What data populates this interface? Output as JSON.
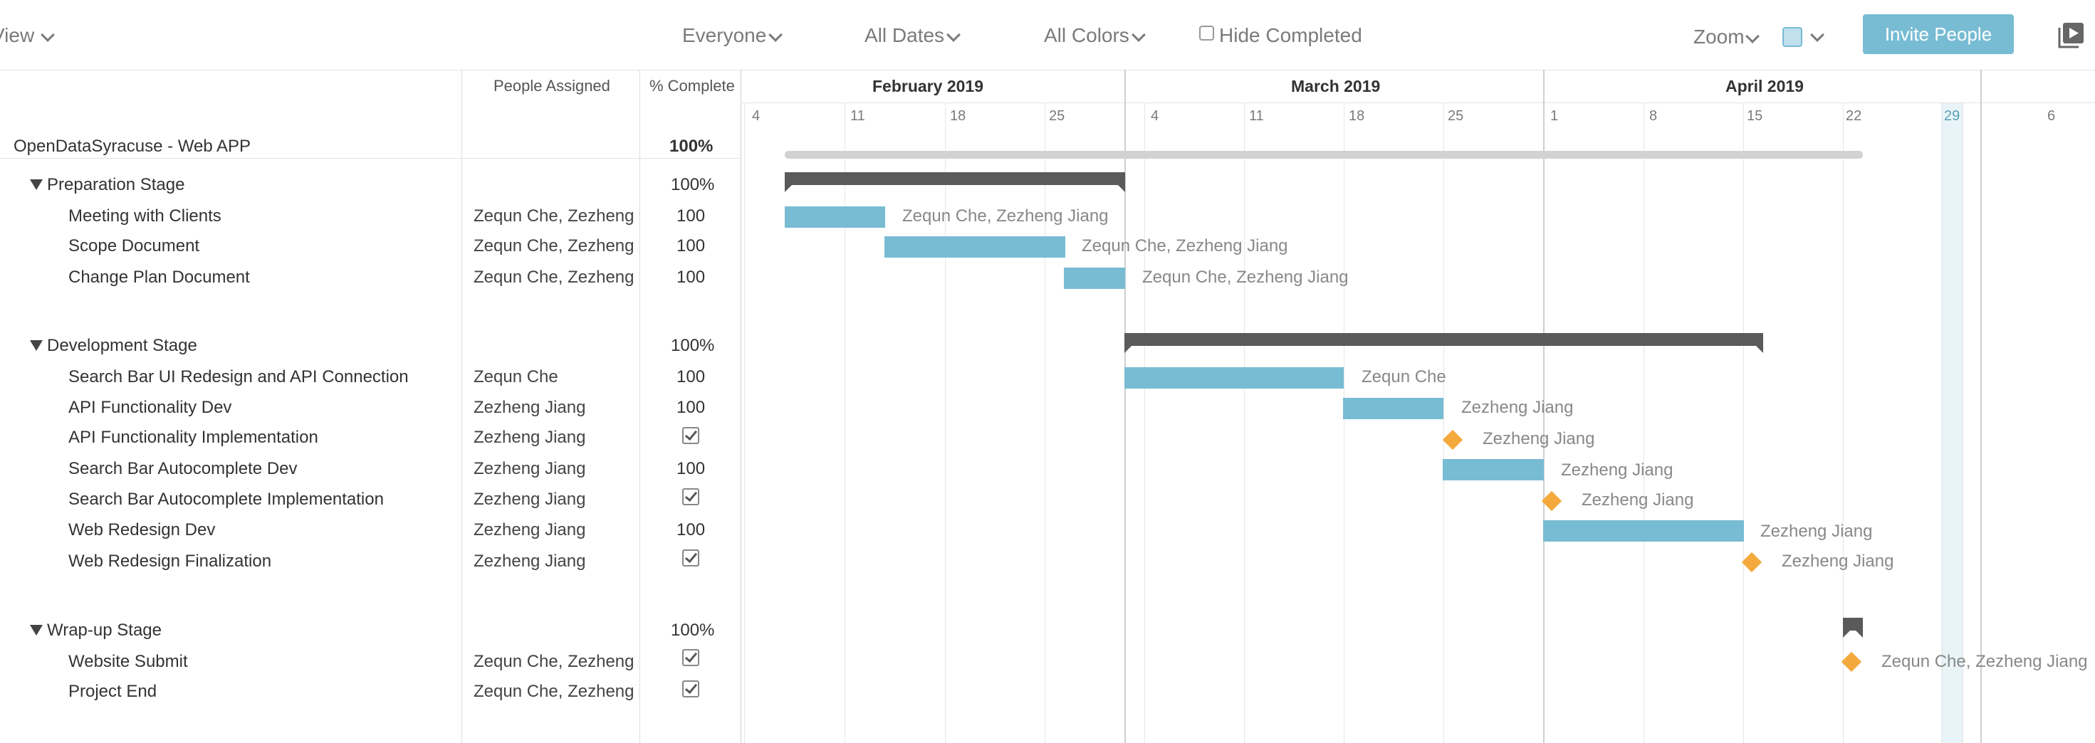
{
  "toolbar": {
    "view_label": "View",
    "everyone_label": "Everyone",
    "dates_label": "All Dates",
    "colors_label": "All Colors",
    "hide_completed_label": "Hide Completed",
    "zoom_label": "Zoom",
    "invite_label": "Invite People"
  },
  "columns": {
    "people": "People Assigned",
    "complete": "% Complete"
  },
  "timeline": {
    "months": [
      "February 2019",
      "March 2019",
      "April 2019"
    ],
    "days": [
      "4",
      "11",
      "18",
      "25",
      "4",
      "11",
      "18",
      "25",
      "1",
      "8",
      "15",
      "22",
      "29",
      "6"
    ]
  },
  "project": {
    "name": "OpenDataSyracuse - Web APP",
    "complete": "100%"
  },
  "stages": [
    {
      "name": "Preparation Stage",
      "complete": "100%",
      "tasks": [
        {
          "name": "Meeting with Clients",
          "people": "Zequn Che, Zezheng",
          "complete": "100",
          "label": "Zequn Che, Zezheng Jiang"
        },
        {
          "name": "Scope Document",
          "people": "Zequn Che, Zezheng",
          "complete": "100",
          "label": "Zequn Che, Zezheng Jiang"
        },
        {
          "name": "Change Plan Document",
          "people": "Zequn Che, Zezheng",
          "complete": "100",
          "label": "Zequn Che, Zezheng Jiang"
        }
      ]
    },
    {
      "name": "Development Stage",
      "complete": "100%",
      "tasks": [
        {
          "name": "Search Bar UI Redesign and  API Connection",
          "people": "Zequn Che",
          "complete": "100",
          "label": "Zequn Che"
        },
        {
          "name": "API Functionality Dev",
          "people": "Zezheng Jiang",
          "complete": "100",
          "label": "Zezheng Jiang"
        },
        {
          "name": "API Functionality Implementation",
          "people": "Zezheng Jiang",
          "complete": "",
          "label": "Zezheng Jiang"
        },
        {
          "name": "Search Bar Autocomplete Dev",
          "people": "Zezheng Jiang",
          "complete": "100",
          "label": "Zezheng Jiang"
        },
        {
          "name": "Search Bar Autocomplete Implementation",
          "people": "Zezheng Jiang",
          "complete": "",
          "label": "Zezheng Jiang"
        },
        {
          "name": "Web Redesign Dev",
          "people": "Zezheng Jiang",
          "complete": "100",
          "label": "Zezheng Jiang"
        },
        {
          "name": "Web Redesign Finalization",
          "people": "Zezheng Jiang",
          "complete": "",
          "label": "Zezheng Jiang"
        }
      ]
    },
    {
      "name": "Wrap-up Stage",
      "complete": "100%",
      "tasks": [
        {
          "name": "Website Submit",
          "people": "Zequn Che, Zezheng",
          "complete": "",
          "label": "Zequn Che, Zezheng Jiang"
        },
        {
          "name": "Project End",
          "people": "Zequn Che, Zezheng",
          "complete": "",
          "label": ""
        }
      ]
    }
  ],
  "colors": {
    "accent": "#78bcd3",
    "milestone": "#f4a93d",
    "stage": "#5a5a5a",
    "invite": "#78bcd3"
  }
}
